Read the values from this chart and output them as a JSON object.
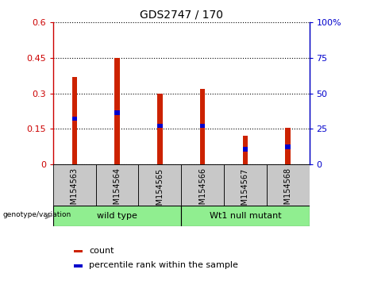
{
  "title": "GDS2747 / 170",
  "samples": [
    "GSM154563",
    "GSM154564",
    "GSM154565",
    "GSM154566",
    "GSM154567",
    "GSM154568"
  ],
  "red_values": [
    0.37,
    0.45,
    0.3,
    0.32,
    0.12,
    0.155
  ],
  "blue_bottom": [
    0.185,
    0.21,
    0.155,
    0.155,
    0.055,
    0.065
  ],
  "blue_height": [
    0.018,
    0.018,
    0.018,
    0.018,
    0.018,
    0.018
  ],
  "ylim_left": [
    0,
    0.6
  ],
  "ylim_right": [
    0,
    100
  ],
  "yticks_left": [
    0,
    0.15,
    0.3,
    0.45,
    0.6
  ],
  "yticks_right": [
    0,
    25,
    50,
    75,
    100
  ],
  "ytick_labels_left": [
    "0",
    "0.15",
    "0.3",
    "0.45",
    "0.6"
  ],
  "ytick_labels_right": [
    "0",
    "25",
    "50",
    "75",
    "100%"
  ],
  "groups": [
    {
      "label": "wild type",
      "color": "#90EE90"
    },
    {
      "label": "Wt1 null mutant",
      "color": "#90EE90"
    }
  ],
  "genotype_label": "genotype/variation",
  "legend_items": [
    {
      "label": "count",
      "color": "#CC2200"
    },
    {
      "label": "percentile rank within the sample",
      "color": "#0000CC"
    }
  ],
  "bar_color_red": "#CC2200",
  "bar_color_blue": "#0000CC",
  "bar_width": 0.12,
  "tick_label_bg": "#C8C8C8",
  "plot_bg": "#FFFFFF"
}
